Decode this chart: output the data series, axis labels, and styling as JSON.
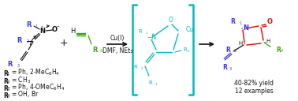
{
  "background_color": "#ffffff",
  "figsize": [
    3.78,
    1.28
  ],
  "dpi": 100,
  "colors": {
    "blue": "#3333ff",
    "cyan": "#00bbbb",
    "green": "#33aa00",
    "red": "#ee1111",
    "black": "#111111",
    "dark": "#222222"
  },
  "conditions1": "Cu(I)",
  "conditions2": "DMF, NEt₃",
  "yield_line1": "40-82% yield",
  "yield_line2": "12 examples",
  "r1_label": "R₁ = Ph, 2-MeC₆H₄",
  "r2_label": "R₂ = CH₃",
  "r3_label": "R₃ = Ph, 4-OMeC₆H₄",
  "r4_label": "R₄ = OH, Br"
}
